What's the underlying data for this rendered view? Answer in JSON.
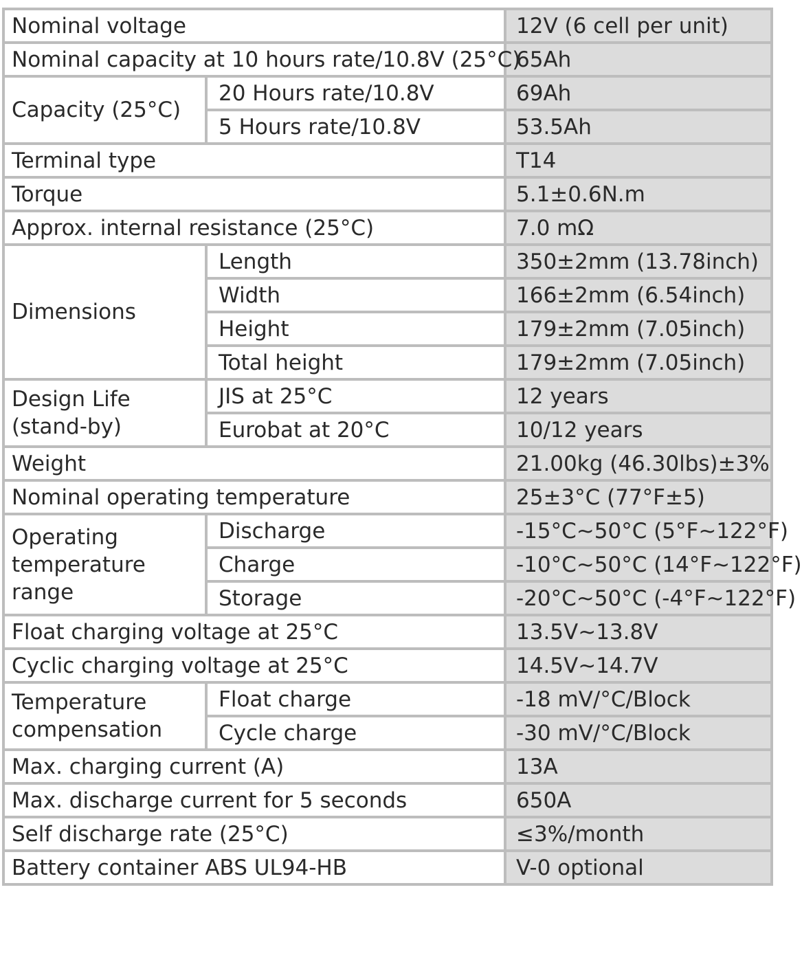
{
  "rows": [
    {
      "label": "Nominal voltage",
      "value": "12V (6 cell per unit)"
    },
    {
      "label": "Nominal capacity at 10 hours rate/10.8V (25°C)",
      "value": "65Ah"
    },
    {
      "label": "Capacity (25°C)",
      "sub": [
        {
          "label": "20 Hours rate/10.8V",
          "value": "69Ah"
        },
        {
          "label": "5 Hours rate/10.8V",
          "value": "53.5Ah"
        }
      ]
    },
    {
      "label": "Terminal type",
      "value": "T14"
    },
    {
      "label": "Torque",
      "value": "5.1±0.6N.m"
    },
    {
      "label": "Approx. internal resistance (25°C)",
      "value": "7.0 mΩ"
    },
    {
      "label": "Dimensions",
      "sub": [
        {
          "label": "Length",
          "value": "350±2mm (13.78inch)"
        },
        {
          "label": "Width",
          "value": "166±2mm (6.54inch)"
        },
        {
          "label": "Height",
          "value": "179±2mm (7.05inch)"
        },
        {
          "label": "Total height",
          "value": "179±2mm (7.05inch)"
        }
      ]
    },
    {
      "label": "Design Life (stand-by)",
      "sub": [
        {
          "label": "JIS at 25°C",
          "value": "12 years"
        },
        {
          "label": "Eurobat at 20°C",
          "value": "10/12 years"
        }
      ]
    },
    {
      "label": "Weight",
      "value": "21.00kg (46.30lbs)±3%"
    },
    {
      "label": "Nominal operating temperature",
      "value": "25±3°C (77°F±5)"
    },
    {
      "label": "Operating temperature range",
      "sub": [
        {
          "label": "Discharge",
          "value": "-15°C~50°C (5°F~122°F)"
        },
        {
          "label": "Charge",
          "value": "-10°C~50°C (14°F~122°F)"
        },
        {
          "label": "Storage",
          "value": "-20°C~50°C (-4°F~122°F)"
        }
      ]
    },
    {
      "label": "Float charging voltage at 25°C",
      "value": "13.5V~13.8V"
    },
    {
      "label": "Cyclic charging voltage at 25°C",
      "value": "14.5V~14.7V"
    },
    {
      "label": "Temperature compensation",
      "sub": [
        {
          "label": "Float charge",
          "value": "-18 mV/°C/Block"
        },
        {
          "label": "Cycle charge",
          "value": "-30 mV/°C/Block"
        }
      ]
    },
    {
      "label": "Max. charging current (A)",
      "value": "13A"
    },
    {
      "label": "Max. discharge current for 5 seconds",
      "value": "650A"
    },
    {
      "label": "Self discharge rate (25°C)",
      "value": "≤3%/month"
    },
    {
      "label": "Battery container ABS UL94-HB",
      "value": "V-0 optional"
    }
  ],
  "colors": {
    "border": "#bdbdbd",
    "value_background": "#dcdcdc",
    "label_background": "#ffffff",
    "text": "#2a2a2a"
  }
}
